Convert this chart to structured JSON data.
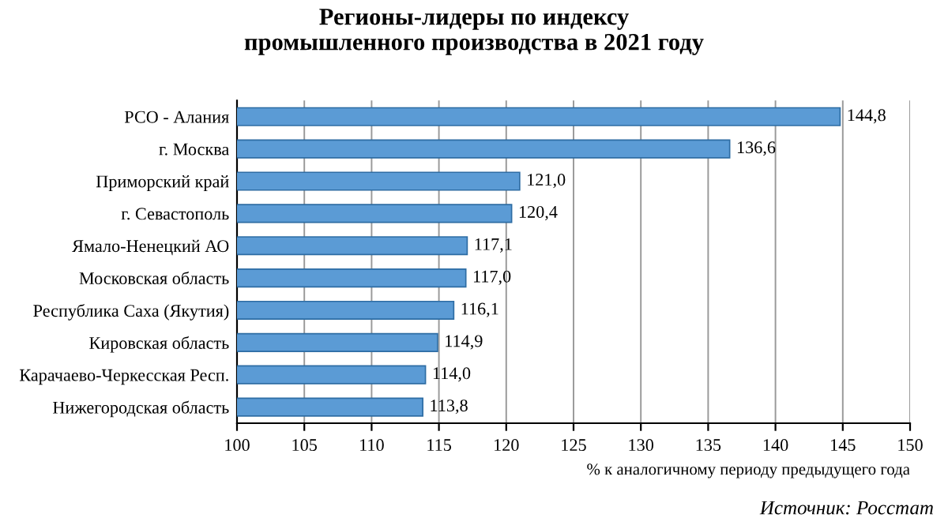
{
  "chart_data": {
    "type": "bar",
    "orientation": "horizontal",
    "title": "Регионы-лидеры по индексу\nпромышленного производства в 2021 году",
    "xlabel": "% к аналогичному периоду предыдущего года",
    "categories": [
      "РСО - Алания",
      "г. Москва",
      "Приморский край",
      "г. Севастополь",
      "Ямало-Ненецкий АО",
      "Московская область",
      "Республика Саха (Якутия)",
      "Кировская область",
      "Карачаево-Черкесская Респ.",
      "Нижегородская область"
    ],
    "values": [
      144.8,
      136.6,
      121.0,
      120.4,
      117.1,
      117.0,
      116.1,
      114.9,
      114.0,
      113.8
    ],
    "value_labels": [
      "144,8",
      "136,6",
      "121,0",
      "120,4",
      "117,1",
      "117,0",
      "116,1",
      "114,9",
      "114,0",
      "113,8"
    ],
    "color": "#5b9bd5",
    "xlim": [
      100,
      150
    ],
    "xticks": [
      100,
      105,
      110,
      115,
      120,
      125,
      130,
      135,
      140,
      145,
      150
    ],
    "grid": "x",
    "annotations": [
      "Источник: Росстат"
    ]
  }
}
